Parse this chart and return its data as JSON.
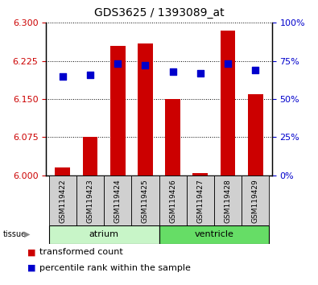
{
  "title": "GDS3625 / 1393089_at",
  "samples": [
    "GSM119422",
    "GSM119423",
    "GSM119424",
    "GSM119425",
    "GSM119426",
    "GSM119427",
    "GSM119428",
    "GSM119429"
  ],
  "transformed_counts": [
    6.015,
    6.075,
    6.255,
    6.26,
    6.15,
    6.005,
    6.285,
    6.16
  ],
  "percentile_ranks": [
    65,
    66,
    73,
    72,
    68,
    67,
    73,
    69
  ],
  "ylim_left": [
    6.0,
    6.3
  ],
  "ylim_right": [
    0,
    100
  ],
  "yticks_left": [
    6.0,
    6.075,
    6.15,
    6.225,
    6.3
  ],
  "yticks_right": [
    0,
    25,
    50,
    75,
    100
  ],
  "bar_color": "#cc0000",
  "dot_color": "#0000cc",
  "bar_bottom": 6.0,
  "bar_width": 0.55,
  "dot_size": 30,
  "tick_color_left": "#cc0000",
  "tick_color_right": "#0000cc",
  "atrium_color": "#c8f5c8",
  "ventricle_color": "#66dd66",
  "legend_items": [
    "transformed count",
    "percentile rank within the sample"
  ],
  "legend_colors": [
    "#cc0000",
    "#0000cc"
  ],
  "title_fontsize": 10,
  "tick_fontsize": 8,
  "sample_fontsize": 6.5,
  "tissue_fontsize": 8,
  "legend_fontsize": 8
}
